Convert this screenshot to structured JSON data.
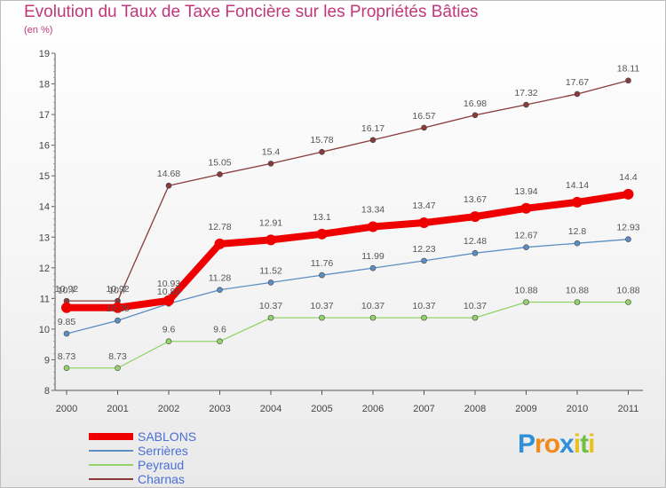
{
  "chart_data": {
    "type": "line",
    "title": "Evolution du Taux de Taxe Foncière sur les Propriétés Bâties",
    "subtitle": "(en %)",
    "categories": [
      "2000",
      "2001",
      "2002",
      "2003",
      "2004",
      "2005",
      "2006",
      "2007",
      "2008",
      "2009",
      "2010",
      "2011"
    ],
    "ylim": [
      8,
      19
    ],
    "yticks": [
      8,
      9,
      10,
      11,
      12,
      13,
      14,
      15,
      16,
      17,
      18,
      19
    ],
    "grid": false,
    "legend_position": "bottom-left",
    "series": [
      {
        "name": "SABLONS",
        "color": "#ee0000",
        "labels": [
          "10.7",
          "10.7",
          "10.93",
          "12.78",
          "12.91",
          "13.1",
          "13.34",
          "13.47",
          "13.67",
          "13.94",
          "14.14",
          "14.4"
        ],
        "values": [
          10.7,
          10.7,
          10.93,
          12.78,
          12.91,
          13.1,
          13.34,
          13.47,
          13.67,
          13.94,
          14.14,
          14.4
        ]
      },
      {
        "name": "Serrières",
        "color": "#5b8fc4",
        "labels": [
          "9.85",
          "10.28",
          "10.83",
          "11.28",
          "11.52",
          "11.76",
          "11.99",
          "12.23",
          "12.48",
          "12.67",
          "12.8",
          "12.93"
        ],
        "values": [
          9.85,
          10.28,
          10.83,
          11.28,
          11.52,
          11.76,
          11.99,
          12.23,
          12.48,
          12.67,
          12.8,
          12.93
        ]
      },
      {
        "name": "Peyraud",
        "color": "#94d36a",
        "labels": [
          "8.73",
          "8.73",
          "9.6",
          "9.6",
          "10.37",
          "10.37",
          "10.37",
          "10.37",
          "10.37",
          "10.88",
          "10.88",
          "10.88"
        ],
        "values": [
          8.73,
          8.73,
          9.6,
          9.6,
          10.37,
          10.37,
          10.37,
          10.37,
          10.37,
          10.88,
          10.88,
          10.88
        ]
      },
      {
        "name": "Charnas",
        "color": "#8a3a3a",
        "labels": [
          "10.92",
          "10.92",
          "14.68",
          "15.05",
          "15.4",
          "15.78",
          "16.17",
          "16.57",
          "16.98",
          "17.32",
          "17.67",
          "18.11"
        ],
        "values": [
          10.92,
          10.92,
          14.68,
          15.05,
          15.4,
          15.78,
          16.17,
          16.57,
          16.98,
          17.32,
          17.67,
          18.11
        ]
      }
    ]
  },
  "logo": {
    "letters": [
      "P",
      "r",
      "o",
      "x",
      "i",
      "t",
      "i"
    ],
    "colors": [
      "#2f8fd8",
      "#f08a1c",
      "#f08a1c",
      "#2f8fd8",
      "#e8c020",
      "#70c040",
      "#e8c020"
    ]
  }
}
